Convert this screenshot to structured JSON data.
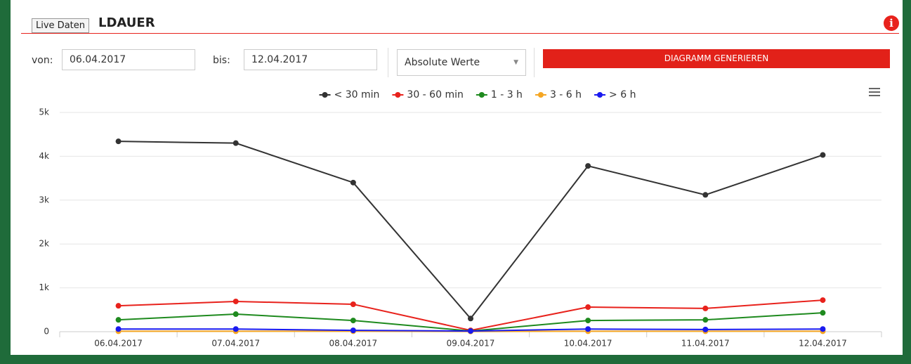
{
  "header": {
    "title": "LDAUER",
    "tooltip": "Live Daten"
  },
  "form": {
    "from_label": "von:",
    "from_value": "06.04.2017",
    "to_label": "bis:",
    "to_value": "12.04.2017",
    "mode": "Absolute Werte",
    "button": "DIAGRAMM GENERIEREN"
  },
  "chart_data": {
    "type": "line",
    "categories": [
      "06.04.2017",
      "07.04.2017",
      "08.04.2017",
      "09.04.2017",
      "10.04.2017",
      "11.04.2017",
      "12.04.2017"
    ],
    "series": [
      {
        "name": "< 30 min",
        "color": "#333333",
        "values": [
          4340,
          4300,
          3400,
          300,
          3780,
          3120,
          4030
        ]
      },
      {
        "name": "30 - 60 min",
        "color": "#e8221c",
        "values": [
          590,
          690,
          625,
          30,
          560,
          530,
          720
        ]
      },
      {
        "name": "1 - 3 h",
        "color": "#1e8a1e",
        "values": [
          270,
          400,
          255,
          15,
          255,
          270,
          430
        ]
      },
      {
        "name": "3 - 6 h",
        "color": "#f5a623",
        "values": [
          10,
          10,
          10,
          5,
          10,
          10,
          10
        ]
      },
      {
        "name": "> 6 h",
        "color": "#1a1aef",
        "values": [
          60,
          60,
          30,
          15,
          60,
          50,
          60
        ]
      }
    ],
    "ylim": [
      0,
      5000
    ],
    "yticks": [
      {
        "value": 0,
        "label": "0"
      },
      {
        "value": 1000,
        "label": "1k"
      },
      {
        "value": 2000,
        "label": "2k"
      },
      {
        "value": 3000,
        "label": "3k"
      },
      {
        "value": 4000,
        "label": "4k"
      },
      {
        "value": 5000,
        "label": "5k"
      }
    ],
    "grid": true,
    "legend": "top"
  }
}
